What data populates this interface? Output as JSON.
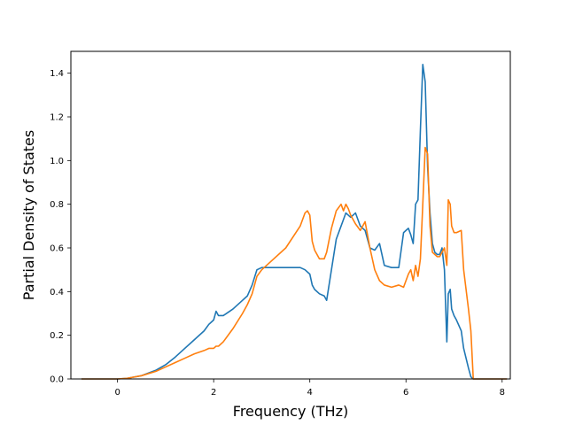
{
  "chart_data": {
    "type": "line",
    "xlabel": "Frequency (THz)",
    "ylabel": "Partial Density of States",
    "xlim": [
      -0.97,
      8.17
    ],
    "ylim": [
      0,
      1.5
    ],
    "xticks": [
      0,
      2,
      4,
      6,
      8
    ],
    "xtick_labels": [
      "0",
      "2",
      "4",
      "6",
      "8"
    ],
    "yticks": [
      0.0,
      0.2,
      0.4,
      0.6,
      0.8,
      1.0,
      1.2,
      1.4
    ],
    "ytick_labels": [
      "0.0",
      "0.2",
      "0.4",
      "0.6",
      "0.8",
      "1.0",
      "1.2",
      "1.4"
    ],
    "grid": false,
    "colors": [
      "#1f77b4",
      "#ff7f0e"
    ],
    "series": [
      {
        "color": "#1f77b4",
        "x": [
          -0.75,
          0.0,
          0.2,
          0.5,
          0.8,
          1.0,
          1.2,
          1.4,
          1.6,
          1.8,
          1.9,
          1.95,
          2.0,
          2.05,
          2.1,
          2.2,
          2.4,
          2.6,
          2.7,
          2.8,
          2.9,
          3.0,
          3.2,
          3.5,
          3.8,
          3.9,
          4.0,
          4.05,
          4.1,
          4.2,
          4.3,
          4.35,
          4.45,
          4.55,
          4.65,
          4.75,
          4.85,
          4.95,
          5.05,
          5.15,
          5.25,
          5.35,
          5.45,
          5.55,
          5.7,
          5.85,
          5.95,
          6.0,
          6.05,
          6.1,
          6.15,
          6.2,
          6.25,
          6.3,
          6.35,
          6.4,
          6.45,
          6.5,
          6.55,
          6.6,
          6.65,
          6.7,
          6.75,
          6.8,
          6.85,
          6.88,
          6.92,
          6.95,
          7.0,
          7.05,
          7.15,
          7.2,
          7.3,
          7.35,
          7.4,
          8.1
        ],
        "y": [
          0.0,
          0.0,
          0.003,
          0.015,
          0.04,
          0.065,
          0.1,
          0.14,
          0.18,
          0.22,
          0.25,
          0.26,
          0.27,
          0.31,
          0.29,
          0.29,
          0.32,
          0.36,
          0.38,
          0.43,
          0.5,
          0.51,
          0.51,
          0.51,
          0.51,
          0.5,
          0.48,
          0.43,
          0.41,
          0.39,
          0.38,
          0.36,
          0.5,
          0.64,
          0.7,
          0.76,
          0.74,
          0.76,
          0.7,
          0.68,
          0.6,
          0.59,
          0.62,
          0.52,
          0.51,
          0.51,
          0.67,
          0.68,
          0.69,
          0.66,
          0.62,
          0.8,
          0.82,
          1.14,
          1.44,
          1.36,
          0.97,
          0.76,
          0.62,
          0.58,
          0.57,
          0.57,
          0.6,
          0.5,
          0.17,
          0.39,
          0.41,
          0.32,
          0.29,
          0.27,
          0.22,
          0.14,
          0.05,
          0.01,
          0.0,
          0.0
        ]
      },
      {
        "color": "#ff7f0e",
        "x": [
          -0.75,
          0.0,
          0.2,
          0.5,
          0.8,
          1.0,
          1.2,
          1.4,
          1.6,
          1.8,
          1.9,
          1.95,
          2.0,
          2.05,
          2.1,
          2.2,
          2.4,
          2.6,
          2.7,
          2.8,
          2.9,
          3.0,
          3.2,
          3.5,
          3.8,
          3.9,
          3.95,
          4.0,
          4.05,
          4.1,
          4.2,
          4.3,
          4.35,
          4.45,
          4.55,
          4.65,
          4.7,
          4.75,
          4.8,
          4.85,
          4.95,
          5.05,
          5.15,
          5.25,
          5.35,
          5.45,
          5.55,
          5.7,
          5.85,
          5.95,
          6.0,
          6.05,
          6.1,
          6.15,
          6.2,
          6.25,
          6.3,
          6.35,
          6.4,
          6.45,
          6.5,
          6.55,
          6.6,
          6.65,
          6.7,
          6.75,
          6.8,
          6.85,
          6.88,
          6.92,
          6.95,
          7.0,
          7.05,
          7.15,
          7.2,
          7.3,
          7.35,
          7.4,
          8.1
        ],
        "y": [
          0.0,
          0.0,
          0.003,
          0.015,
          0.035,
          0.055,
          0.075,
          0.095,
          0.115,
          0.13,
          0.14,
          0.14,
          0.14,
          0.15,
          0.15,
          0.17,
          0.23,
          0.3,
          0.34,
          0.39,
          0.47,
          0.5,
          0.54,
          0.6,
          0.7,
          0.76,
          0.77,
          0.75,
          0.63,
          0.59,
          0.55,
          0.55,
          0.58,
          0.69,
          0.77,
          0.8,
          0.77,
          0.8,
          0.78,
          0.75,
          0.71,
          0.68,
          0.72,
          0.6,
          0.5,
          0.45,
          0.43,
          0.42,
          0.43,
          0.42,
          0.45,
          0.48,
          0.5,
          0.45,
          0.52,
          0.47,
          0.55,
          0.8,
          1.06,
          1.03,
          0.7,
          0.58,
          0.57,
          0.56,
          0.56,
          0.58,
          0.6,
          0.52,
          0.82,
          0.8,
          0.7,
          0.67,
          0.67,
          0.68,
          0.5,
          0.32,
          0.22,
          0.0,
          0.0
        ]
      }
    ]
  }
}
